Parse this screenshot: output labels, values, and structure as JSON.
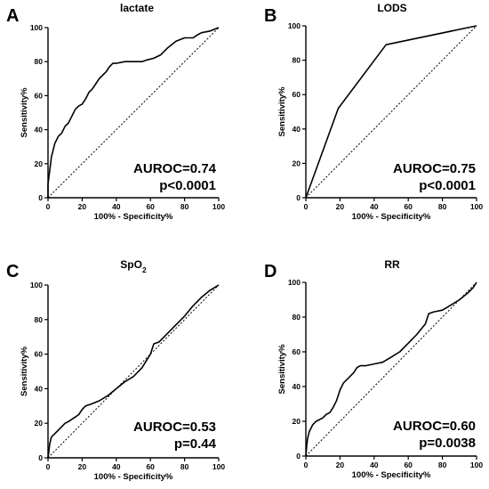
{
  "chart_data": [
    {
      "type": "line",
      "panel": "A",
      "title": "lactate",
      "title_sub": "",
      "xlabel": "100% - Specificity%",
      "ylabel": "Sensitivity%",
      "xlim": [
        0,
        100
      ],
      "ylim": [
        0,
        100
      ],
      "xticks": [
        "0",
        "20",
        "40",
        "60",
        "80",
        "100"
      ],
      "yticks": [
        "0",
        "20",
        "40",
        "60",
        "80",
        "100"
      ],
      "annotation": [
        "AUROC=0.74",
        "p<0.0001"
      ],
      "reference_line": "diagonal",
      "series": [
        {
          "x": [
            0,
            0,
            1,
            1.5,
            2,
            3,
            4,
            5,
            6,
            8,
            10,
            12,
            14,
            16,
            18,
            20,
            22,
            24,
            26,
            28,
            30,
            32,
            34,
            36,
            38,
            40,
            45,
            50,
            55,
            58,
            62,
            66,
            70,
            75,
            80,
            85,
            88,
            90,
            95,
            100
          ],
          "y": [
            0,
            8,
            16,
            20,
            24,
            28,
            32,
            34,
            36,
            38,
            42,
            44,
            48,
            52,
            54,
            55,
            58,
            62,
            64,
            67,
            70,
            72,
            74,
            77,
            79,
            79,
            80,
            80,
            80,
            81,
            82,
            84,
            88,
            92,
            94,
            94,
            96,
            97,
            98,
            100
          ]
        }
      ]
    },
    {
      "type": "line",
      "panel": "B",
      "title": "LODS",
      "title_sub": "",
      "xlabel": "100% - Specificity%",
      "ylabel": "Sensitivity%",
      "xlim": [
        0,
        100
      ],
      "ylim": [
        0,
        100
      ],
      "xticks": [
        "0",
        "20",
        "40",
        "60",
        "80",
        "100"
      ],
      "yticks": [
        "0",
        "20",
        "40",
        "60",
        "80",
        "100"
      ],
      "annotation": [
        "AUROC=0.75",
        "p<0.0001"
      ],
      "reference_line": "diagonal",
      "series": [
        {
          "x": [
            0,
            19,
            47,
            100
          ],
          "y": [
            0,
            52,
            89,
            100
          ]
        }
      ]
    },
    {
      "type": "line",
      "panel": "C",
      "title": "SpO",
      "title_sub": "2",
      "xlabel": "100% - Specificity%",
      "ylabel": "Sensitivity%",
      "xlim": [
        0,
        100
      ],
      "ylim": [
        0,
        100
      ],
      "xticks": [
        "0",
        "20",
        "40",
        "60",
        "80",
        "100"
      ],
      "yticks": [
        "0",
        "20",
        "40",
        "60",
        "80",
        "100"
      ],
      "annotation": [
        "AUROC=0.53",
        "p=0.44"
      ],
      "reference_line": "diagonal",
      "series": [
        {
          "x": [
            0,
            0.5,
            1,
            2,
            4,
            6,
            8,
            10,
            12,
            15,
            18,
            20,
            22,
            25,
            30,
            35,
            40,
            45,
            50,
            55,
            60,
            62,
            65,
            68,
            70,
            75,
            80,
            85,
            90,
            95,
            100
          ],
          "y": [
            0,
            4,
            8,
            12,
            14,
            16,
            18,
            20,
            21,
            23,
            25,
            28,
            30,
            31,
            33,
            36,
            40,
            44,
            47,
            52,
            60,
            66,
            67,
            70,
            72,
            77,
            82,
            88,
            93,
            97,
            100
          ]
        }
      ]
    },
    {
      "type": "line",
      "panel": "D",
      "title": "RR",
      "title_sub": "",
      "xlabel": "100% - Specificity%",
      "ylabel": "Sensitivity%",
      "xlim": [
        0,
        100
      ],
      "ylim": [
        0,
        100
      ],
      "xticks": [
        "0",
        "20",
        "40",
        "60",
        "80",
        "100"
      ],
      "yticks": [
        "0",
        "20",
        "40",
        "60",
        "80",
        "100"
      ],
      "annotation": [
        "AUROC=0.60",
        "p=0.0038"
      ],
      "reference_line": "diagonal",
      "series": [
        {
          "x": [
            0,
            0.5,
            1,
            2,
            3,
            4,
            6,
            8,
            10,
            12,
            14,
            16,
            18,
            20,
            22,
            25,
            28,
            30,
            32,
            35,
            40,
            45,
            50,
            55,
            60,
            65,
            70,
            72,
            75,
            80,
            85,
            90,
            95,
            98,
            100
          ],
          "y": [
            0,
            6,
            10,
            14,
            16,
            18,
            20,
            21,
            22,
            24,
            25,
            28,
            32,
            38,
            42,
            45,
            48,
            51,
            52,
            52,
            53,
            54,
            57,
            60,
            65,
            70,
            76,
            82,
            83,
            84,
            87,
            90,
            94,
            97,
            100
          ]
        }
      ]
    }
  ]
}
